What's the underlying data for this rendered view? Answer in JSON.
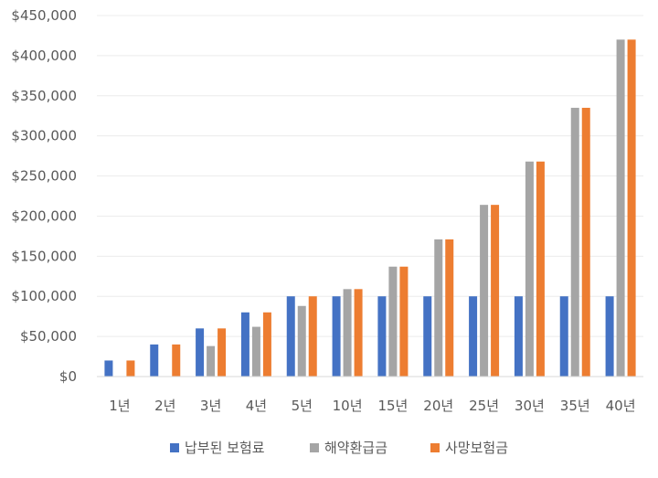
{
  "chart_data": {
    "type": "bar",
    "categories": [
      "1년",
      "2년",
      "3년",
      "4년",
      "5년",
      "10년",
      "15년",
      "20년",
      "25년",
      "30년",
      "35년",
      "40년"
    ],
    "series": [
      {
        "name": "납부된 보험료",
        "color": "#4472c4",
        "values": [
          20000,
          40000,
          60000,
          80000,
          100000,
          100000,
          100000,
          100000,
          100000,
          100000,
          100000,
          100000
        ]
      },
      {
        "name": "해약환급금",
        "color": "#a5a5a5",
        "values": [
          0,
          0,
          38000,
          62000,
          88000,
          109000,
          137000,
          171000,
          214000,
          268000,
          335000,
          420000
        ]
      },
      {
        "name": "사망보험금",
        "color": "#ed7d31",
        "values": [
          20000,
          40000,
          60000,
          80000,
          100000,
          109000,
          137000,
          171000,
          214000,
          268000,
          335000,
          420000
        ]
      }
    ],
    "ylim": [
      0,
      450000
    ],
    "yticks": [
      "$0",
      "$50,000",
      "$100,000",
      "$150,000",
      "$200,000",
      "$250,000",
      "$300,000",
      "$350,000",
      "$400,000",
      "$450,000"
    ],
    "ytick_values": [
      0,
      50000,
      100000,
      150000,
      200000,
      250000,
      300000,
      350000,
      400000,
      450000
    ],
    "grid": true,
    "legend_position": "bottom"
  }
}
